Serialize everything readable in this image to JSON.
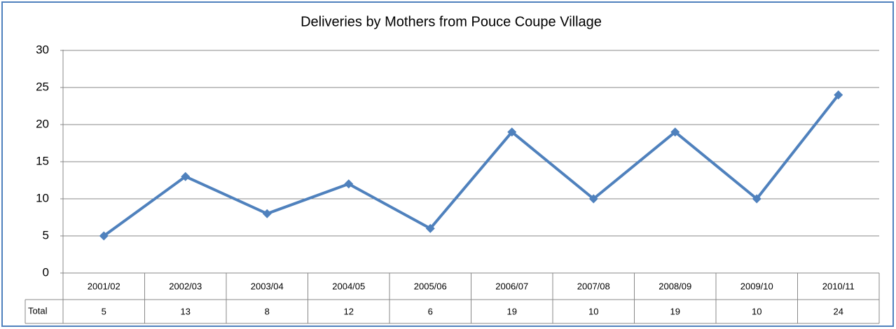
{
  "chart_data": {
    "type": "line",
    "title": "Deliveries by Mothers from Pouce Coupe Village",
    "categories": [
      "2001/02",
      "2002/03",
      "2003/04",
      "2004/05",
      "2005/06",
      "2006/07",
      "2007/08",
      "2008/09",
      "2009/10",
      "2010/11"
    ],
    "series": [
      {
        "name": "Total",
        "color": "#4f81bd",
        "values": [
          5,
          13,
          8,
          12,
          6,
          19,
          10,
          19,
          10,
          24
        ]
      }
    ],
    "ylim": [
      0,
      30
    ],
    "yticks": [
      0,
      5,
      10,
      15,
      20,
      25,
      30
    ],
    "grid": true
  }
}
